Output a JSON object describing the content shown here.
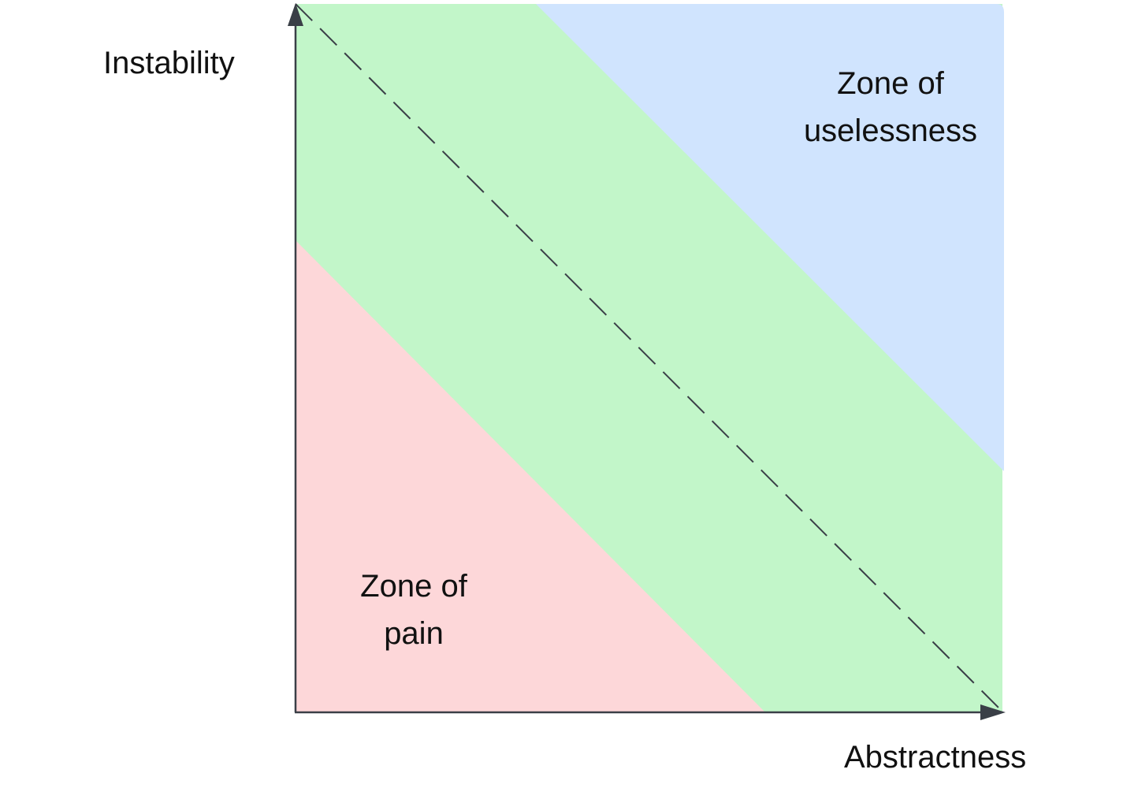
{
  "axes": {
    "x_label": "Abstractness",
    "y_label": "Instability"
  },
  "zones": {
    "pain": {
      "line1": "Zone of",
      "line2": "pain"
    },
    "uselessness": {
      "line1": "Zone of",
      "line2": "uselessness"
    }
  },
  "colors": {
    "pain_zone": "#fdd7d9",
    "main_sequence_band": "#c2f6c9",
    "uselessness_zone": "#d0e4fe",
    "axis": "#3a3f47",
    "dashed_line": "#3a3f47"
  }
}
